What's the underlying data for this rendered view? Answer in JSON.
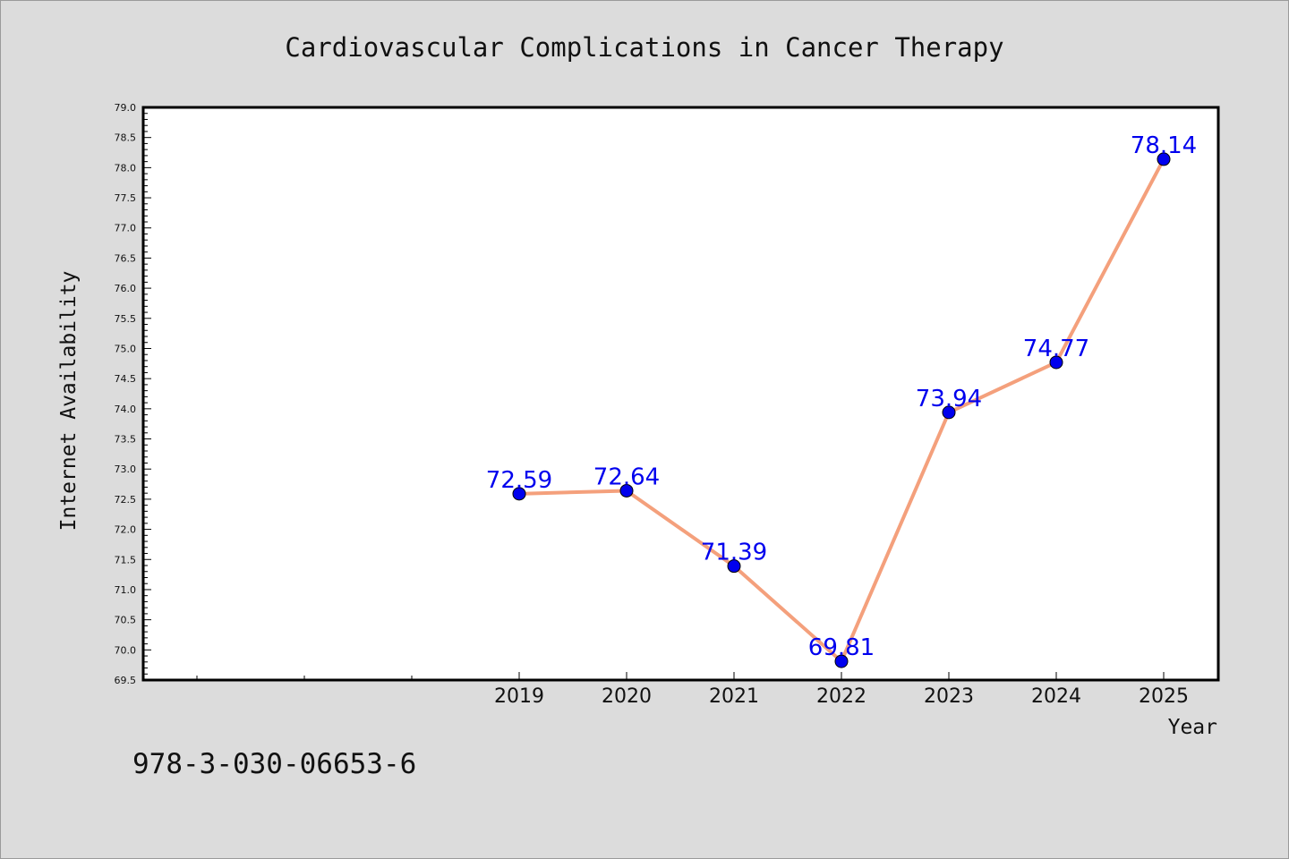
{
  "chart_data": {
    "type": "line",
    "title": "Cardiovascular Complications in Cancer Therapy",
    "xlabel": "Year",
    "ylabel": "Internet Availability",
    "categories": [
      "2019",
      "2020",
      "2021",
      "2022",
      "2023",
      "2024",
      "2025"
    ],
    "series": [
      {
        "values": [
          72.59,
          72.64,
          71.39,
          69.81,
          73.94,
          74.77,
          78.14
        ],
        "labels": [
          "72.59",
          "72.64",
          "71.39",
          "69.81",
          "73.94",
          "74.77",
          "78.14"
        ]
      }
    ],
    "ylim": [
      69.5,
      79.0
    ],
    "y_ticks": [
      "69.5",
      "70.0",
      "70.5",
      "71.0",
      "71.5",
      "72.0",
      "72.5",
      "73.0",
      "73.5",
      "74.0",
      "74.5",
      "75.0",
      "75.5",
      "76.0",
      "76.5",
      "77.0",
      "77.5",
      "78.0",
      "78.5",
      "79.0"
    ],
    "grid": false,
    "line_color": "#f4a07c",
    "marker_color": "#0000ee",
    "label_color": "#0000ee"
  },
  "footer_text": "978-3-030-06653-6"
}
